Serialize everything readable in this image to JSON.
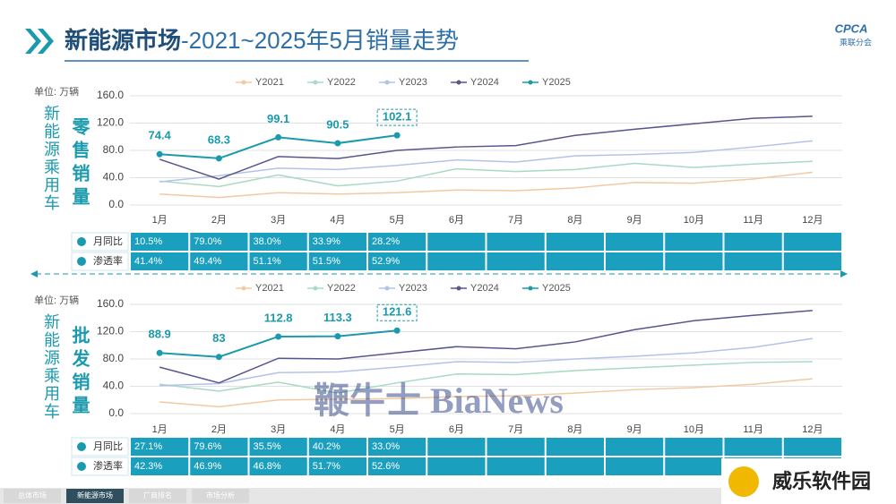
{
  "header": {
    "title_main": "新能源市场",
    "title_rest": "-2021~2025年5月销量走势",
    "logo": "CPCA",
    "logo_sub": "乘联分会"
  },
  "chart_data": [
    {
      "type": "line",
      "unit": "单位: 万辆",
      "group_label": "新能源乘用车",
      "y_label": "零售销量",
      "categories": [
        "1月",
        "2月",
        "3月",
        "4月",
        "5月",
        "6月",
        "7月",
        "8月",
        "9月",
        "10月",
        "11月",
        "12月"
      ],
      "ylim": [
        0,
        160
      ],
      "yticks": [
        {
          "value": 0,
          "label": "0.0"
        },
        {
          "value": 40,
          "label": "40.0"
        },
        {
          "value": 80,
          "label": "80.0"
        },
        {
          "value": 120,
          "label": "120.0"
        },
        {
          "value": 160,
          "label": "160.0"
        }
      ],
      "grid": true,
      "series": [
        {
          "name": "Y2021",
          "color": "#f3c9a2",
          "values": [
            16,
            11,
            18,
            16,
            18,
            22,
            21,
            25,
            33,
            32,
            38,
            48
          ]
        },
        {
          "name": "Y2022",
          "color": "#a6dbc0",
          "values": [
            35,
            27,
            44,
            28,
            35,
            53,
            49,
            52,
            61,
            55,
            60,
            64
          ]
        },
        {
          "name": "Y2023",
          "color": "#b3c3e8",
          "values": [
            34,
            43,
            54,
            52,
            58,
            66,
            63,
            72,
            74,
            77,
            85,
            94
          ]
        },
        {
          "name": "Y2024",
          "color": "#56568f",
          "values": [
            67,
            38,
            71,
            68,
            80,
            85,
            87,
            102,
            111,
            119,
            127,
            130
          ]
        },
        {
          "name": "Y2025",
          "color": "#1b9aae",
          "values": [
            74.4,
            68.3,
            99.1,
            90.5,
            102.1,
            null,
            null,
            null,
            null,
            null,
            null,
            null
          ]
        }
      ]
    },
    {
      "type": "line",
      "unit": "单位: 万辆",
      "group_label": "新能源乘用车",
      "y_label": "批发销量",
      "categories": [
        "1月",
        "2月",
        "3月",
        "4月",
        "5月",
        "6月",
        "7月",
        "8月",
        "9月",
        "10月",
        "11月",
        "12月"
      ],
      "ylim": [
        0,
        160
      ],
      "yticks": [
        {
          "value": 0,
          "label": "0.0"
        },
        {
          "value": 40,
          "label": "40.0"
        },
        {
          "value": 80,
          "label": "80.0"
        },
        {
          "value": 120,
          "label": "120.0"
        },
        {
          "value": 160,
          "label": "160.0"
        }
      ],
      "grid": true,
      "series": [
        {
          "name": "Y2021",
          "color": "#f3c9a2",
          "values": [
            17,
            10,
            20,
            21,
            22,
            25,
            26,
            30,
            35,
            38,
            43,
            51
          ]
        },
        {
          "name": "Y2022",
          "color": "#a6dbc0",
          "values": [
            43,
            33,
            46,
            30,
            45,
            58,
            57,
            63,
            67,
            71,
            75,
            76
          ]
        },
        {
          "name": "Y2023",
          "color": "#b3c3e8",
          "values": [
            41,
            44,
            60,
            61,
            68,
            76,
            75,
            80,
            84,
            89,
            97,
            110
          ]
        },
        {
          "name": "Y2024",
          "color": "#56568f",
          "values": [
            68,
            45,
            81,
            80,
            89,
            98,
            95,
            105,
            123,
            136,
            144,
            151
          ]
        },
        {
          "name": "Y2025",
          "color": "#1b9aae",
          "values": [
            88.9,
            83.0,
            112.8,
            113.3,
            121.6,
            null,
            null,
            null,
            null,
            null,
            null,
            null
          ]
        }
      ]
    }
  ],
  "tables": [
    {
      "rows": [
        {
          "label": "月同比",
          "values": [
            "10.5%",
            "79.0%",
            "38.0%",
            "33.9%",
            "28.2%"
          ]
        },
        {
          "label": "渗透率",
          "values": [
            "41.4%",
            "49.4%",
            "51.1%",
            "51.5%",
            "52.9%"
          ]
        }
      ]
    },
    {
      "rows": [
        {
          "label": "月同比",
          "values": [
            "27.1%",
            "79.6%",
            "35.5%",
            "40.2%",
            "33.0%"
          ]
        },
        {
          "label": "渗透率",
          "values": [
            "42.3%",
            "46.9%",
            "46.8%",
            "51.7%",
            "52.6%"
          ]
        }
      ]
    }
  ],
  "watermarks": [
    "鞭牛士 BiaNews",
    "威乐软件园"
  ],
  "tabs": [
    "总体市场",
    "新能源市场",
    "厂商排名",
    "市场分析"
  ]
}
